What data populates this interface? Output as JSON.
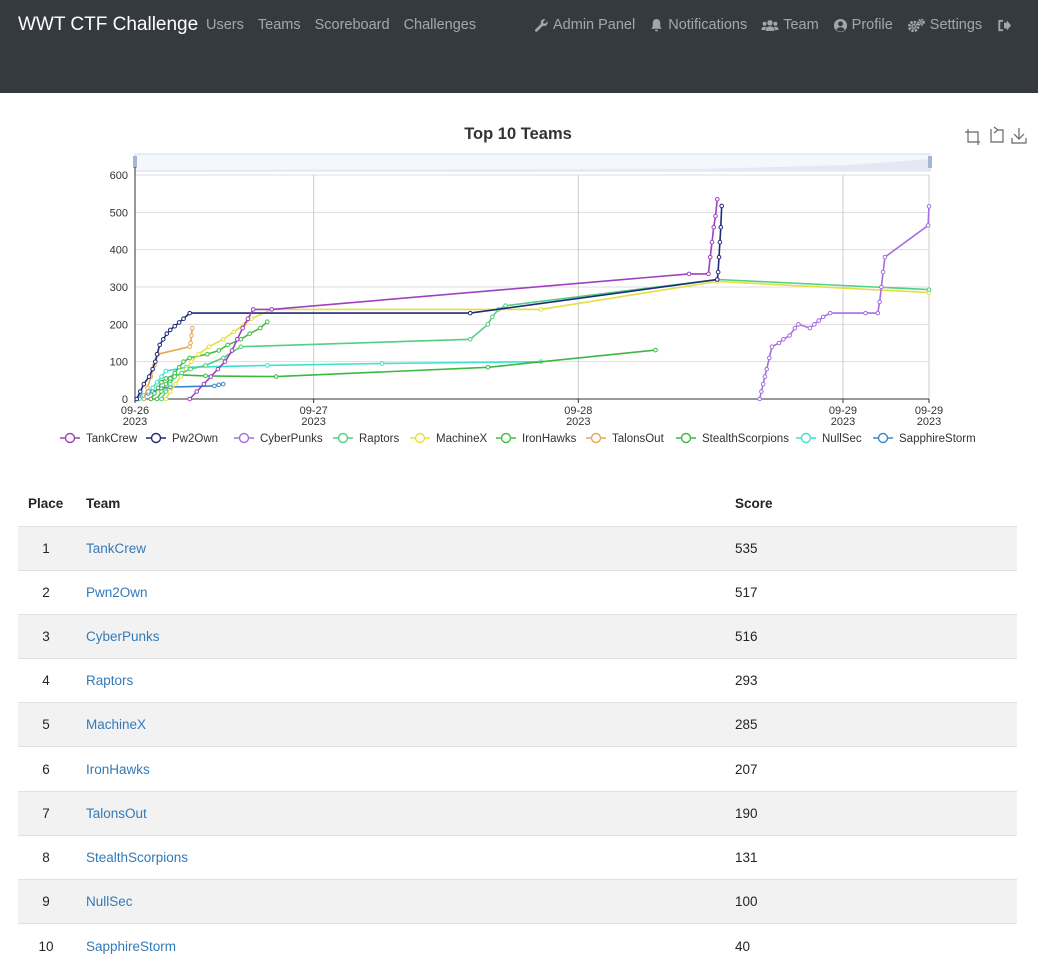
{
  "navbar": {
    "brand": "WWT CTF Challenge",
    "left_links": [
      "Users",
      "Teams",
      "Scoreboard",
      "Challenges"
    ],
    "right_items": [
      {
        "label": "Admin Panel",
        "icon": "wrench-icon"
      },
      {
        "label": "Notifications",
        "icon": "bell-icon"
      },
      {
        "label": "Team",
        "icon": "users-icon"
      },
      {
        "label": "Profile",
        "icon": "user-circle-icon"
      },
      {
        "label": "Settings",
        "icon": "cogs-icon"
      },
      {
        "label": "",
        "icon": "logout-icon"
      }
    ]
  },
  "colors": {
    "navbar_bg": "#343a40",
    "link": "#337ab7",
    "stripe": "#f2f2f2"
  },
  "chart_data": {
    "type": "line",
    "title": "Top 10 Teams",
    "toolbox_icons": [
      "zoom-icon",
      "zoom-reset-icon",
      "download-icon"
    ],
    "ylim": [
      0,
      600
    ],
    "yticks": [
      0,
      100,
      200,
      300,
      400,
      500,
      600
    ],
    "xlim": [
      "2023-09-26 00:00",
      "2023-09-29 00:00"
    ],
    "xticks": [
      {
        "x": 0,
        "label": [
          "09-26",
          "2023"
        ]
      },
      {
        "x": 20.25,
        "label": [
          "09-27",
          "2023"
        ]
      },
      {
        "x": 50.25,
        "label": [
          "09-28",
          "2023"
        ]
      },
      {
        "x": 80.25,
        "label": [
          "09-29",
          "2023"
        ]
      },
      {
        "x": 90,
        "label": [
          "09-29",
          "2023"
        ]
      }
    ],
    "x_unit": "hours since 2023-09-26 00:00",
    "grid": true,
    "legend_position": "bottom",
    "series": [
      {
        "name": "TankCrew",
        "color": "#a040c0",
        "points": [
          [
            6.2,
            0
          ],
          [
            7.0,
            20
          ],
          [
            7.8,
            40
          ],
          [
            8.6,
            60
          ],
          [
            9.4,
            80
          ],
          [
            10.2,
            100
          ],
          [
            11.0,
            130
          ],
          [
            11.6,
            160
          ],
          [
            12.2,
            190
          ],
          [
            12.8,
            215
          ],
          [
            13.4,
            240
          ],
          [
            15.5,
            240
          ],
          [
            62.8,
            335
          ],
          [
            65.0,
            335
          ],
          [
            65.2,
            380
          ],
          [
            65.4,
            420
          ],
          [
            65.6,
            460
          ],
          [
            65.8,
            490
          ],
          [
            66.0,
            535
          ]
        ]
      },
      {
        "name": "Pw2Own",
        "color": "#1f2a7a",
        "points": [
          [
            0.2,
            0
          ],
          [
            0.6,
            20
          ],
          [
            1.0,
            40
          ],
          [
            1.6,
            60
          ],
          [
            2.0,
            80
          ],
          [
            2.3,
            100
          ],
          [
            2.5,
            120
          ],
          [
            2.8,
            145
          ],
          [
            3.2,
            160
          ],
          [
            3.6,
            175
          ],
          [
            4.0,
            185
          ],
          [
            4.5,
            195
          ],
          [
            5.0,
            205
          ],
          [
            5.5,
            215
          ],
          [
            6.2,
            230
          ],
          [
            38.0,
            230
          ],
          [
            66.0,
            320
          ],
          [
            66.1,
            340
          ],
          [
            66.2,
            380
          ],
          [
            66.3,
            420
          ],
          [
            66.4,
            460
          ],
          [
            66.5,
            517
          ]
        ]
      },
      {
        "name": "CyberPunks",
        "color": "#a46ee0",
        "points": [
          [
            70.8,
            0
          ],
          [
            71.0,
            20
          ],
          [
            71.2,
            40
          ],
          [
            71.4,
            60
          ],
          [
            71.6,
            80
          ],
          [
            71.9,
            110
          ],
          [
            72.2,
            140
          ],
          [
            73.0,
            150
          ],
          [
            73.5,
            160
          ],
          [
            74.2,
            170
          ],
          [
            74.8,
            190
          ],
          [
            75.2,
            200
          ],
          [
            76.5,
            190
          ],
          [
            77.0,
            200
          ],
          [
            77.5,
            210
          ],
          [
            78.0,
            220
          ],
          [
            78.8,
            230
          ],
          [
            82.8,
            230
          ],
          [
            84.2,
            230
          ],
          [
            84.4,
            260
          ],
          [
            84.6,
            300
          ],
          [
            84.8,
            340
          ],
          [
            85.0,
            380
          ],
          [
            89.9,
            465
          ],
          [
            90.0,
            516
          ]
        ]
      },
      {
        "name": "Raptors",
        "color": "#50d080",
        "points": [
          [
            3.0,
            0
          ],
          [
            3.5,
            20
          ],
          [
            4.0,
            40
          ],
          [
            4.5,
            60
          ],
          [
            5.3,
            70
          ],
          [
            6.3,
            80
          ],
          [
            8.0,
            90
          ],
          [
            10.0,
            110
          ],
          [
            12.0,
            140
          ],
          [
            38.0,
            160
          ],
          [
            40.0,
            200
          ],
          [
            40.5,
            220
          ],
          [
            41.2,
            240
          ],
          [
            42.0,
            250
          ],
          [
            66.0,
            320
          ],
          [
            90.0,
            293
          ]
        ]
      },
      {
        "name": "MachineX",
        "color": "#e4e040",
        "points": [
          [
            3.5,
            0
          ],
          [
            4.0,
            20
          ],
          [
            4.6,
            40
          ],
          [
            5.2,
            60
          ],
          [
            5.8,
            80
          ],
          [
            6.4,
            100
          ],
          [
            7.2,
            120
          ],
          [
            8.4,
            140
          ],
          [
            10.0,
            160
          ],
          [
            11.2,
            180
          ],
          [
            12.4,
            200
          ],
          [
            13.2,
            215
          ],
          [
            15.5,
            240
          ],
          [
            46.0,
            240
          ],
          [
            66.0,
            315
          ],
          [
            90.0,
            285
          ]
        ]
      },
      {
        "name": "IronHawks",
        "color": "#40c040",
        "points": [
          [
            2.5,
            0
          ],
          [
            3.0,
            20
          ],
          [
            3.5,
            40
          ],
          [
            4.0,
            55
          ],
          [
            4.5,
            70
          ],
          [
            5.0,
            85
          ],
          [
            5.5,
            100
          ],
          [
            6.2,
            110
          ],
          [
            8.2,
            120
          ],
          [
            9.5,
            130
          ],
          [
            10.5,
            145
          ],
          [
            12.0,
            160
          ],
          [
            13.0,
            175
          ],
          [
            14.2,
            190
          ],
          [
            15.0,
            207
          ]
        ]
      },
      {
        "name": "TalonsOut",
        "color": "#e8a850",
        "points": [
          [
            1.0,
            0
          ],
          [
            1.4,
            30
          ],
          [
            1.8,
            60
          ],
          [
            2.2,
            90
          ],
          [
            2.6,
            120
          ],
          [
            6.2,
            140
          ],
          [
            6.3,
            150
          ],
          [
            6.4,
            170
          ],
          [
            6.5,
            190
          ]
        ]
      },
      {
        "name": "StealthScorpions",
        "color": "#3cb840",
        "points": [
          [
            1.8,
            0
          ],
          [
            2.2,
            15
          ],
          [
            2.6,
            30
          ],
          [
            3.0,
            45
          ],
          [
            3.5,
            55
          ],
          [
            4.5,
            65
          ],
          [
            8.0,
            62
          ],
          [
            16.0,
            60
          ],
          [
            40.0,
            85
          ],
          [
            59.0,
            131
          ]
        ]
      },
      {
        "name": "NullSec",
        "color": "#40e0d0",
        "points": [
          [
            0.5,
            0
          ],
          [
            1.0,
            10
          ],
          [
            1.5,
            20
          ],
          [
            2.0,
            30
          ],
          [
            2.5,
            45
          ],
          [
            3.0,
            60
          ],
          [
            3.5,
            75
          ],
          [
            5.8,
            85
          ],
          [
            15.0,
            90
          ],
          [
            28.0,
            95
          ],
          [
            46.0,
            100
          ]
        ]
      },
      {
        "name": "SapphireStorm",
        "color": "#3a88c8",
        "points": [
          [
            0.3,
            0
          ],
          [
            0.8,
            8
          ],
          [
            1.5,
            15
          ],
          [
            2.0,
            20
          ],
          [
            3.0,
            28
          ],
          [
            4.0,
            32
          ],
          [
            9.0,
            35
          ],
          [
            9.5,
            38
          ],
          [
            10.0,
            40
          ]
        ]
      }
    ]
  },
  "table": {
    "headers": {
      "place": "Place",
      "team": "Team",
      "score": "Score"
    },
    "rows": [
      {
        "place": "1",
        "team": "TankCrew",
        "score": "535"
      },
      {
        "place": "2",
        "team": "Pwn2Own",
        "score": "517"
      },
      {
        "place": "3",
        "team": "CyberPunks",
        "score": "516"
      },
      {
        "place": "4",
        "team": "Raptors",
        "score": "293"
      },
      {
        "place": "5",
        "team": "MachineX",
        "score": "285"
      },
      {
        "place": "6",
        "team": "IronHawks",
        "score": "207"
      },
      {
        "place": "7",
        "team": "TalonsOut",
        "score": "190"
      },
      {
        "place": "8",
        "team": "StealthScorpions",
        "score": "131"
      },
      {
        "place": "9",
        "team": "NullSec",
        "score": "100"
      },
      {
        "place": "10",
        "team": "SapphireStorm",
        "score": "40"
      }
    ]
  }
}
